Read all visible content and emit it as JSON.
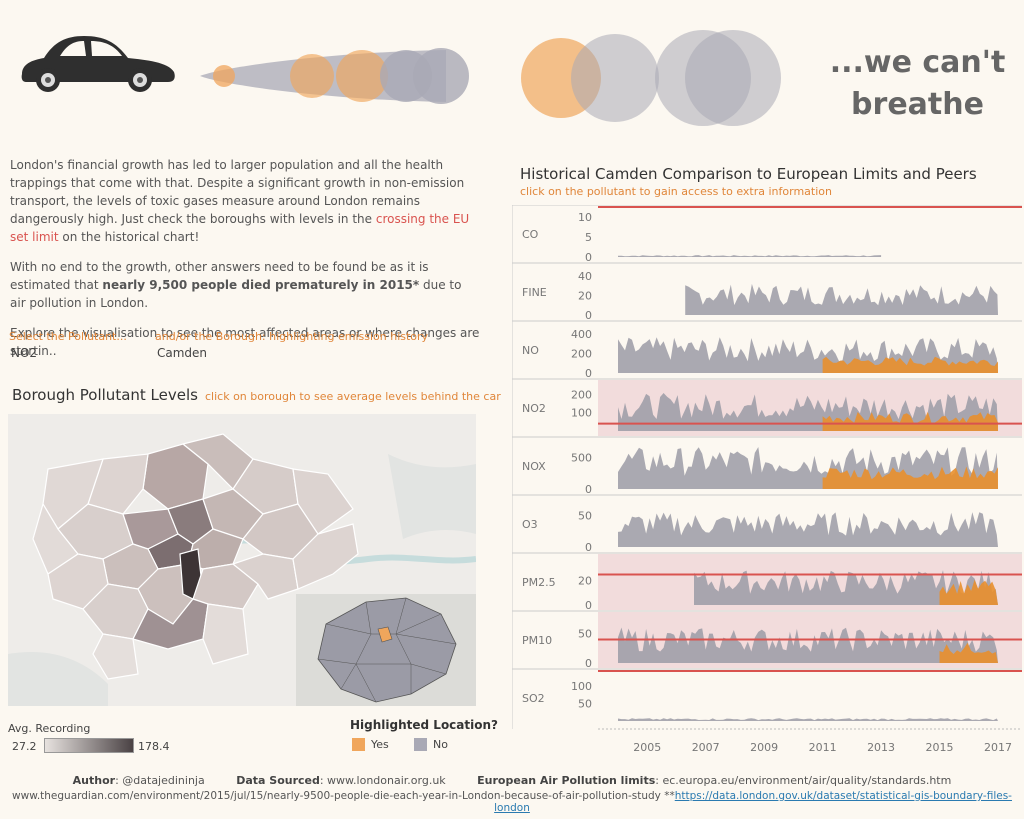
{
  "header": {
    "headline": "...we can't breathe",
    "car_icon": "car-icon",
    "trail": [
      {
        "color": "#a9a9b5"
      },
      {
        "color": "#f0a65c"
      },
      {
        "color": "#f0a65c"
      },
      {
        "color": "#a9a9b5"
      },
      {
        "color": "#a9a9b5"
      }
    ]
  },
  "intro": {
    "p1_start": "London's financial growth has led to larger population and all the health trappings that come with that. Despite a significant growth in non-emission transport, the levels of toxic gases measure around London remains dangerously high. Just check the boroughs with levels in the ",
    "p1_highlight": "crossing the EU set limit",
    "p1_end": " on the historical chart!",
    "p2_start": "With no end to the growth, other answers need to be found be as it is estimated that ",
    "p2_bold": "nearly 9,500 people died prematurely in 2015*",
    "p2_end": " due to air pollution in London.",
    "p3": "Explore the visualisation to see the most affected areas or where changes are startin.."
  },
  "filters": {
    "pollutant_label": "Select the Pollutant...",
    "pollutant_value": "NO2",
    "borough_label": "and/or the Borough: highlighting emission history",
    "borough_value": "Camden"
  },
  "map": {
    "title": "Borough Pollutant Levels",
    "hint": "click on borough to see average levels behind the car",
    "legend_title": "Avg. Recording",
    "legend_min": "27.2",
    "legend_max": "178.4",
    "highlight_title": "Highlighted Location?",
    "highlight_yes": "Yes",
    "highlight_no": "No",
    "colors": {
      "yes": "#f0a65c",
      "no": "#a9a9b5",
      "low": "#e7e2df",
      "high": "#4a4244"
    }
  },
  "chart_data": {
    "type": "area",
    "title": "Historical Camden Comparison to European Limits and Peers",
    "subtitle": "click on the pollutant to gain access to extra information",
    "x_ticks": [
      "2005",
      "2007",
      "2009",
      "2011",
      "2013",
      "2015",
      "2017"
    ],
    "xlim": [
      2004,
      2017
    ],
    "highlight_color": "#e88f2e",
    "peer_color": "#9b9ba6",
    "limit_color": "#d9534f",
    "rows": [
      {
        "label": "CO",
        "ticks": [
          "10",
          "5",
          "0"
        ],
        "ylim": [
          0,
          11
        ],
        "limit": 11,
        "exceed": false,
        "start": 2004,
        "hl_start": null,
        "end": 2013,
        "peer_level": 0.3,
        "hl_level": 0
      },
      {
        "label": "FINE",
        "ticks": [
          "40",
          "20",
          "0"
        ],
        "ylim": [
          0,
          45
        ],
        "limit": null,
        "exceed": false,
        "start": 2006.3,
        "hl_start": null,
        "end": 2017,
        "peer_level": 20,
        "hl_level": 0
      },
      {
        "label": "NO",
        "ticks": [
          "400",
          "200",
          "0"
        ],
        "ylim": [
          0,
          450
        ],
        "limit": null,
        "exceed": false,
        "start": 2004,
        "hl_start": 2011,
        "end": 2017,
        "peer_level": 230,
        "hl_level": 120
      },
      {
        "label": "NO2",
        "ticks": [
          "200",
          "100"
        ],
        "ylim": [
          0,
          240
        ],
        "limit": 40,
        "exceed": true,
        "start": 2004,
        "hl_start": 2011,
        "end": 2017,
        "peer_level": 130,
        "hl_level": 75
      },
      {
        "label": "NOX",
        "ticks": [
          "500",
          "0"
        ],
        "ylim": [
          0,
          700
        ],
        "limit": null,
        "exceed": false,
        "start": 2004,
        "hl_start": 2011,
        "end": 2017,
        "peer_level": 420,
        "hl_level": 260
      },
      {
        "label": "O3",
        "ticks": [
          "50",
          "0"
        ],
        "ylim": [
          0,
          70
        ],
        "limit": null,
        "exceed": false,
        "start": 2004,
        "hl_start": null,
        "end": 2017,
        "peer_level": 35,
        "hl_level": 0
      },
      {
        "label": "PM2.5",
        "ticks": [
          "20",
          "0"
        ],
        "ylim": [
          0,
          36
        ],
        "limit": 25,
        "exceed": true,
        "start": 2006.6,
        "hl_start": 2015,
        "end": 2017,
        "peer_level": 18,
        "hl_level": 15
      },
      {
        "label": "PM10",
        "ticks": [
          "50",
          "0"
        ],
        "ylim": [
          0,
          75
        ],
        "limit": 40,
        "exceed": true,
        "start": 2004,
        "hl_start": 2015,
        "end": 2017,
        "peer_level": 38,
        "hl_level": 25
      },
      {
        "label": "SO2",
        "ticks": [
          "100",
          "50"
        ],
        "ylim": [
          0,
          125
        ],
        "limit": 125,
        "exceed": false,
        "start": 2004,
        "hl_start": null,
        "end": 2017,
        "peer_level": 5,
        "hl_level": 0
      }
    ]
  },
  "footer": {
    "author_label": "Author",
    "author_value": ": @datajedininja",
    "data_label": "Data Sourced",
    "data_value": ": www.londonair.org.uk",
    "limits_label": "European Air Pollution limits",
    "limits_value": ": ec.europa.eu/environment/air/quality/standards.htm",
    "line2_text": "www.theguardian.com/environment/2015/jul/15/nearly-9500-people-die-each-year-in-London-because-of-air-pollution-study **",
    "line2_link": "https://data.london.gov.uk/dataset/statistical-gis-boundary-files-london"
  }
}
